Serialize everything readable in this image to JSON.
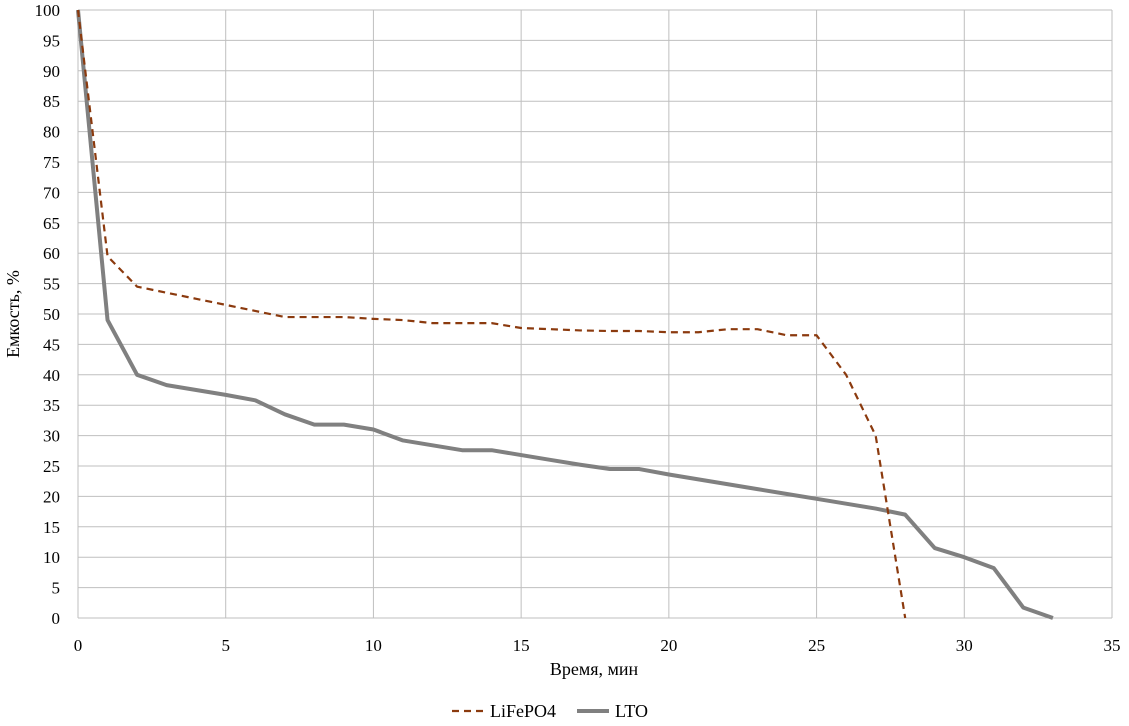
{
  "chart_data": {
    "type": "line",
    "title": "",
    "xlabel": "Время, мин",
    "ylabel": "Емкость, %",
    "xlim": [
      0,
      35
    ],
    "ylim": [
      0,
      100
    ],
    "xticks": [
      0,
      5,
      10,
      15,
      20,
      25,
      30,
      35
    ],
    "yticks": [
      0,
      5,
      10,
      15,
      20,
      25,
      30,
      35,
      40,
      45,
      50,
      55,
      60,
      65,
      70,
      75,
      80,
      85,
      90,
      95,
      100
    ],
    "grid": true,
    "legend_position": "bottom",
    "series": [
      {
        "name": "LiFePO4",
        "style": "dashed",
        "color": "#8B3A0E",
        "x": [
          0,
          1,
          2,
          3,
          4,
          5,
          6,
          7,
          8,
          9,
          10,
          11,
          12,
          13,
          14,
          15,
          16,
          17,
          18,
          19,
          20,
          21,
          22,
          23,
          24,
          25,
          26,
          27,
          28
        ],
        "y": [
          100,
          59.5,
          54.5,
          53.5,
          52.5,
          51.5,
          50.5,
          49.5,
          49.5,
          49.5,
          49.2,
          49.0,
          48.5,
          48.5,
          48.5,
          47.7,
          47.5,
          47.3,
          47.2,
          47.2,
          47.0,
          47.0,
          47.5,
          47.5,
          46.5,
          46.5,
          40.0,
          30.0,
          0
        ]
      },
      {
        "name": "LTO",
        "style": "solid",
        "color": "#808080",
        "x": [
          0,
          1,
          2,
          3,
          4,
          5,
          6,
          7,
          8,
          9,
          10,
          11,
          12,
          13,
          14,
          15,
          16,
          17,
          18,
          19,
          20,
          21,
          22,
          23,
          24,
          25,
          26,
          27,
          28,
          29,
          30,
          31,
          32,
          33
        ],
        "y": [
          100,
          49.0,
          40.0,
          38.3,
          37.5,
          36.7,
          35.8,
          33.5,
          31.8,
          31.8,
          31.0,
          29.2,
          28.4,
          27.6,
          27.6,
          26.8,
          26.0,
          25.2,
          24.5,
          24.5,
          23.6,
          22.8,
          22.0,
          21.2,
          20.4,
          19.6,
          18.8,
          18.0,
          17.0,
          11.5,
          10.0,
          8.2,
          1.7,
          0
        ]
      }
    ]
  }
}
